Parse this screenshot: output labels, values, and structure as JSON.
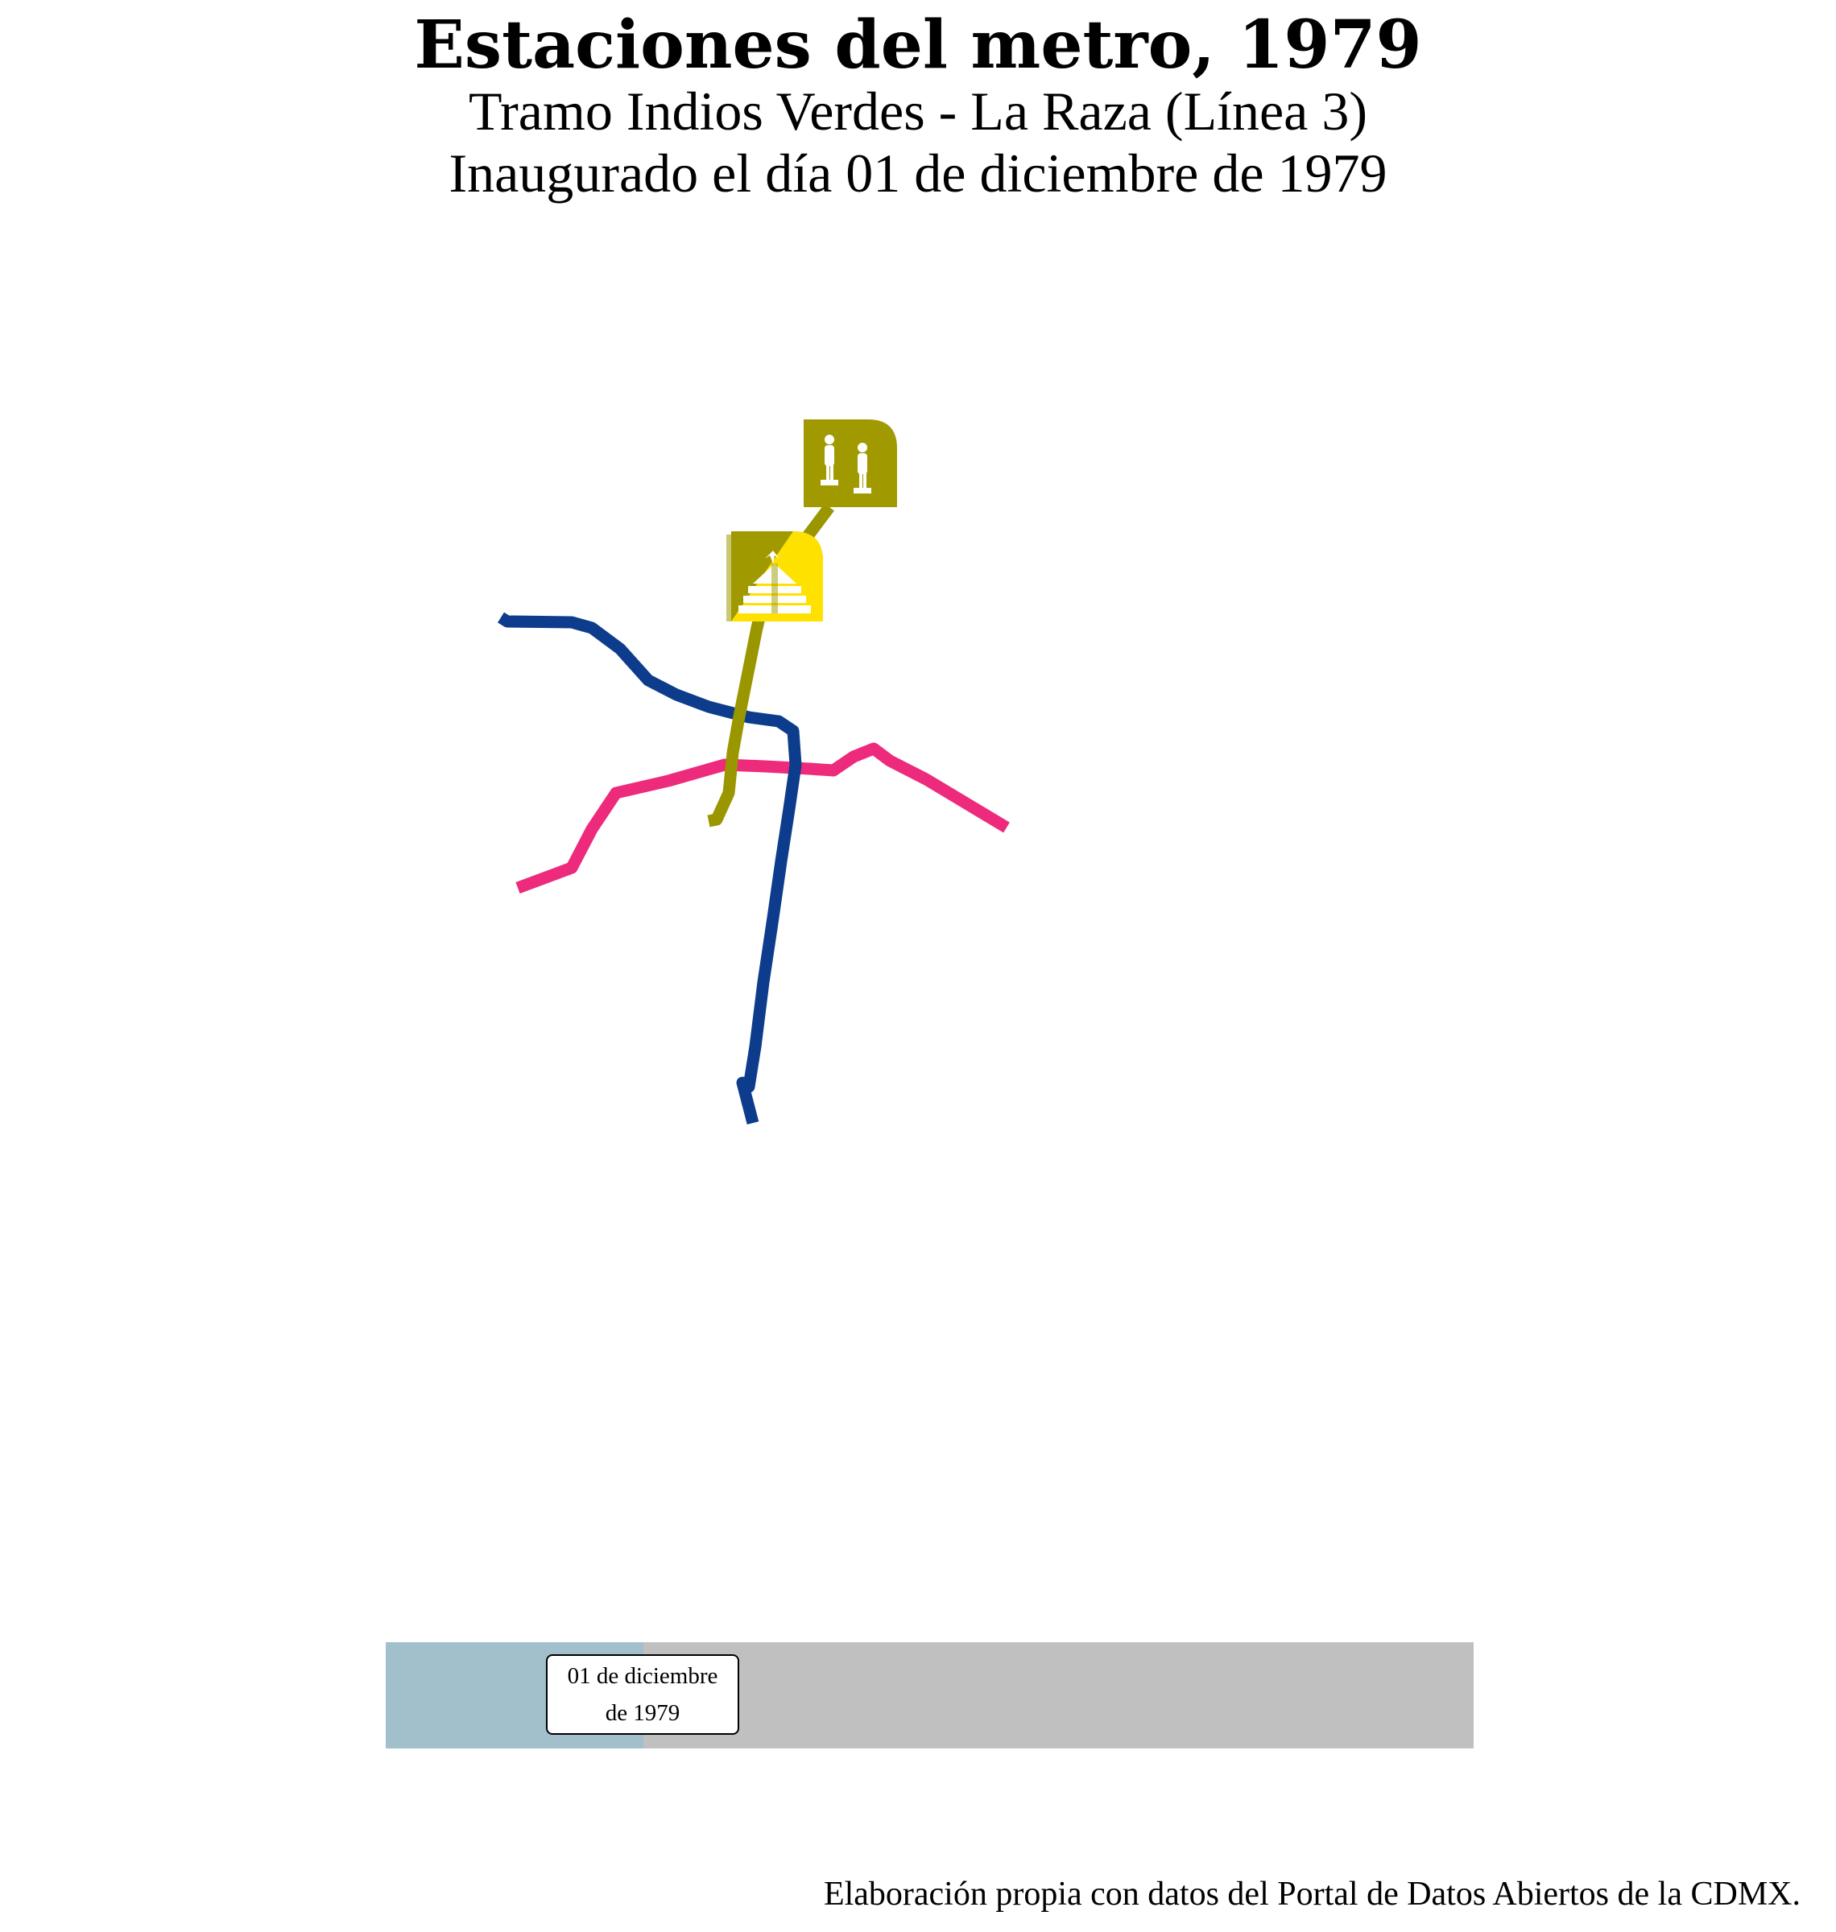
{
  "header": {
    "title": "Estaciones del metro, 1979",
    "subtitle_line1": "Tramo Indios Verdes - La Raza (Línea 3)",
    "subtitle_line2": "Inaugurado el día 01 de diciembre de 1979"
  },
  "map": {
    "lines": [
      {
        "id": "line-3",
        "color": "#9a9600"
      },
      {
        "id": "line-1",
        "color": "#ed2a7b"
      },
      {
        "id": "line-2",
        "color": "#0e3c8c"
      }
    ],
    "stations": [
      {
        "name": "Indios Verdes",
        "icon": "indios-verdes-statues-icon",
        "color": "#a09a00"
      },
      {
        "name": "Deportivo 18 de Marzo",
        "icon": "pyramid-eagle-icon",
        "color": "#a09a00",
        "accent": "#ffe100"
      }
    ]
  },
  "timeline": {
    "progress": 0.237,
    "label_line1": "01 de diciembre",
    "label_line2": "de 1979",
    "fill_color": "#a1c0cc",
    "track_color": "#c0c0c0"
  },
  "footer": {
    "source": "Elaboración propia con datos del Portal de Datos Abiertos de la CDMX."
  }
}
